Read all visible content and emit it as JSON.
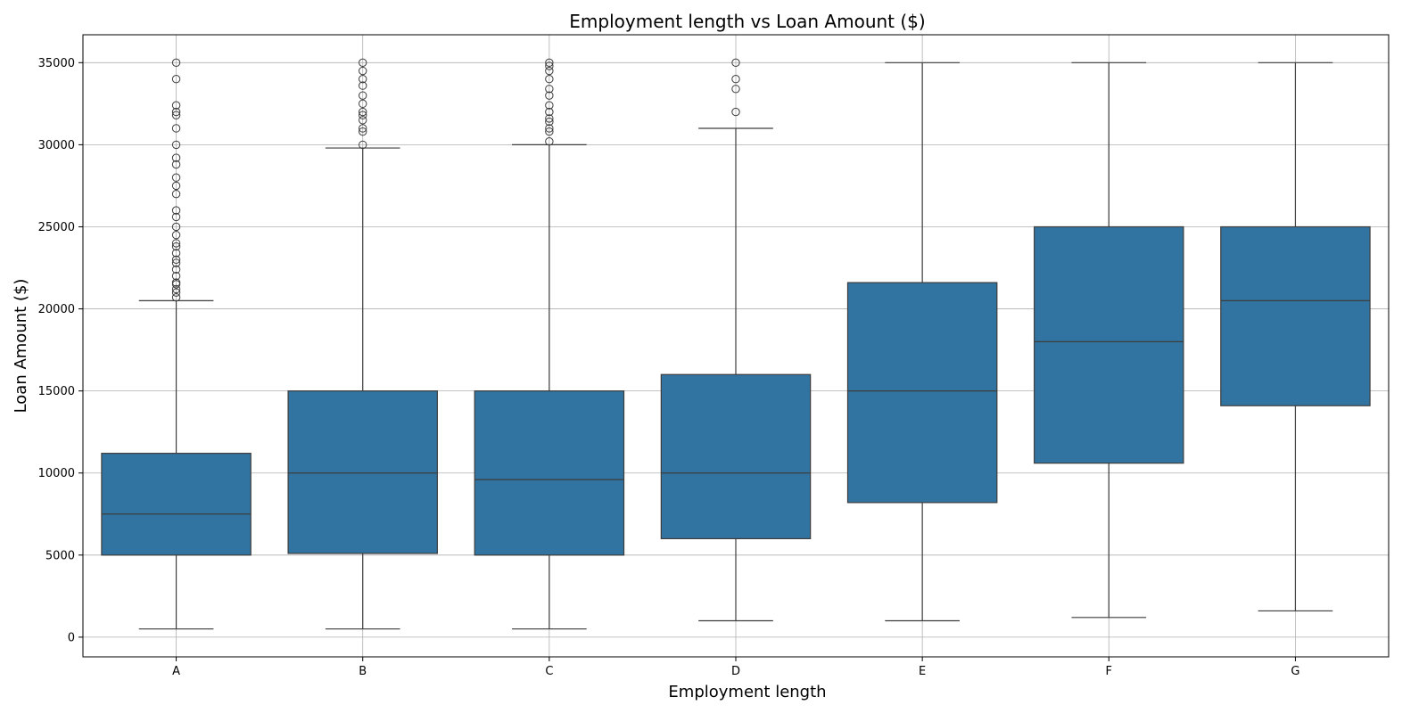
{
  "chart_data": {
    "type": "box",
    "title": "Employment length vs Loan Amount ($)",
    "xlabel": "Employment length",
    "ylabel": "Loan Amount ($)",
    "categories": [
      "A",
      "B",
      "C",
      "D",
      "E",
      "F",
      "G"
    ],
    "ylim": [
      -1200,
      36700
    ],
    "yticks": [
      0,
      5000,
      10000,
      15000,
      20000,
      25000,
      30000,
      35000
    ],
    "grid": true,
    "box_color": "#3274a1",
    "line_color": "#3d3d3d",
    "boxes": [
      {
        "category": "A",
        "whisker_low": 500,
        "q1": 5000,
        "median": 7500,
        "q3": 11200,
        "whisker_high": 20500,
        "outliers": [
          20700,
          21000,
          21200,
          21500,
          21600,
          22000,
          22400,
          22800,
          23000,
          23400,
          23800,
          24000,
          24500,
          25000,
          25600,
          26000,
          27000,
          27500,
          28000,
          28800,
          29200,
          30000,
          31000,
          31800,
          32000,
          32400,
          34000,
          35000
        ]
      },
      {
        "category": "B",
        "whisker_low": 500,
        "q1": 5100,
        "median": 10000,
        "q3": 15000,
        "whisker_high": 29800,
        "outliers": [
          30000,
          30800,
          31000,
          31500,
          31800,
          32000,
          32500,
          33000,
          33600,
          34000,
          34500,
          35000
        ]
      },
      {
        "category": "C",
        "whisker_low": 500,
        "q1": 5000,
        "median": 9600,
        "q3": 15000,
        "whisker_high": 30000,
        "outliers": [
          30200,
          30800,
          31000,
          31400,
          31600,
          32000,
          32400,
          33000,
          33400,
          34000,
          34500,
          34800,
          35000
        ]
      },
      {
        "category": "D",
        "whisker_low": 1000,
        "q1": 6000,
        "median": 10000,
        "q3": 16000,
        "whisker_high": 31000,
        "outliers": [
          32000,
          33400,
          34000,
          35000
        ]
      },
      {
        "category": "E",
        "whisker_low": 1000,
        "q1": 8200,
        "median": 15000,
        "q3": 21600,
        "whisker_high": 35000,
        "outliers": []
      },
      {
        "category": "F",
        "whisker_low": 1200,
        "q1": 10600,
        "median": 18000,
        "q3": 25000,
        "whisker_high": 35000,
        "outliers": []
      },
      {
        "category": "G",
        "whisker_low": 1600,
        "q1": 14100,
        "median": 20500,
        "q3": 25000,
        "whisker_high": 35000,
        "outliers": []
      }
    ]
  }
}
